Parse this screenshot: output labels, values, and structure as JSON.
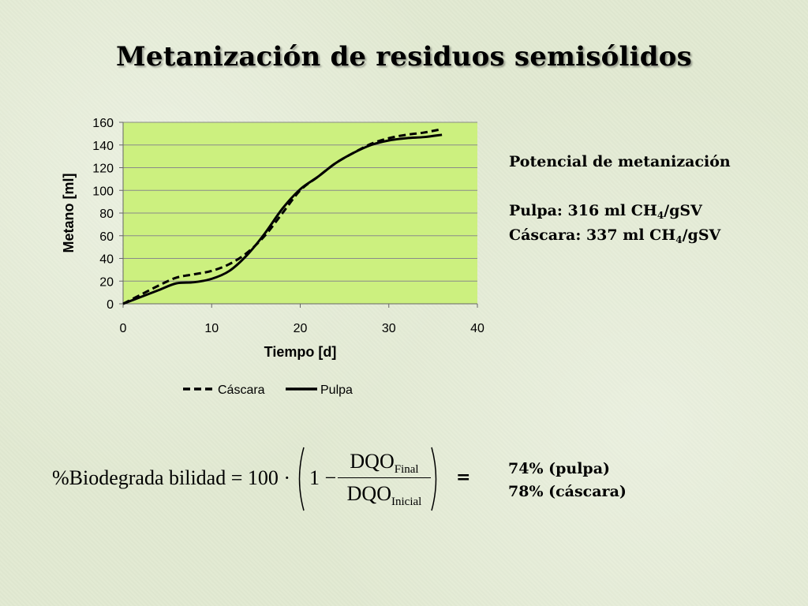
{
  "slide": {
    "title": "Metanización de residuos semisólidos"
  },
  "info": {
    "heading": "Potencial de metanización",
    "pulpa_prefix": "Pulpa: 316 ml CH",
    "pulpa_sub": "4",
    "pulpa_suffix": "/gSV",
    "cascara_prefix": "Cáscara: 337 ml CH",
    "cascara_sub": "4",
    "cascara_suffix": "/gSV"
  },
  "formula": {
    "lhs": "%Biodegrada bilidad = 100 ·",
    "one_minus": "1 −",
    "num_main": "DQO",
    "num_sub": "Final",
    "den_main": "DQO",
    "den_sub": "Inicial",
    "equals": "="
  },
  "results": {
    "pulpa": "74% (pulpa)",
    "cascara": "78% (cáscara)"
  },
  "colors": {
    "plot_area": "#ccf07f",
    "gridline": "#8a8a8a",
    "line": "#000000"
  },
  "chart_data": {
    "type": "line",
    "title": "",
    "xlabel": "Tiempo [d]",
    "ylabel": "Metano [ml]",
    "xlim": [
      0,
      40
    ],
    "ylim": [
      0,
      160
    ],
    "xticks": [
      0,
      10,
      20,
      30,
      40
    ],
    "yticks": [
      0,
      20,
      40,
      60,
      80,
      100,
      120,
      140,
      160
    ],
    "grid": "horizontal",
    "legend": "bottom",
    "series": [
      {
        "name": "Cáscara",
        "style": "dashed",
        "x": [
          0,
          2,
          4,
          6,
          8,
          10,
          12,
          14,
          16,
          18,
          20,
          22,
          24,
          26,
          28,
          30,
          32,
          34,
          36
        ],
        "y": [
          0,
          8,
          16,
          23,
          26,
          29,
          35,
          45,
          60,
          80,
          100,
          112,
          124,
          133,
          141,
          146,
          149,
          151,
          154
        ]
      },
      {
        "name": "Pulpa",
        "style": "solid",
        "x": [
          0,
          2,
          4,
          6,
          8,
          10,
          12,
          14,
          16,
          18,
          20,
          22,
          24,
          26,
          28,
          30,
          32,
          34,
          36
        ],
        "y": [
          0,
          6,
          12,
          18,
          19,
          22,
          29,
          43,
          62,
          84,
          101,
          112,
          124,
          133,
          140,
          144,
          146,
          147,
          149
        ]
      }
    ]
  }
}
